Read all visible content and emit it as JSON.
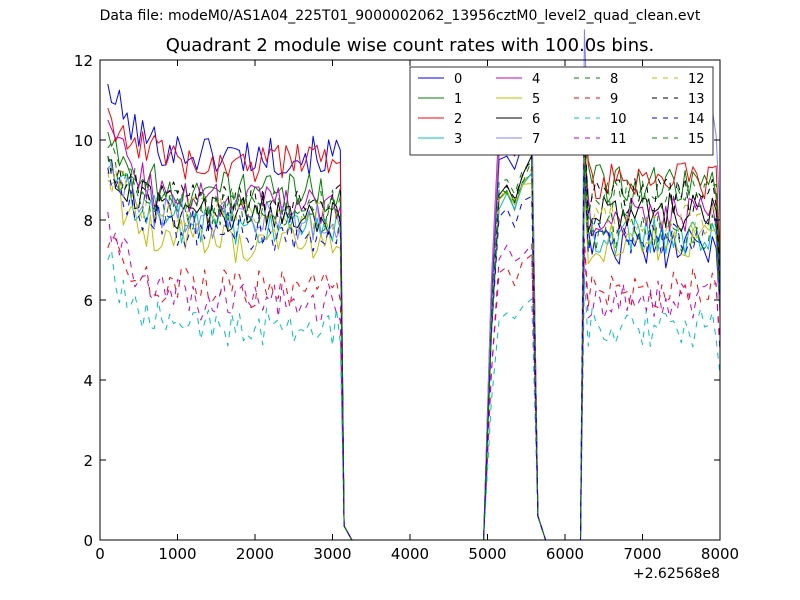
{
  "figure": {
    "suptitle": "Data file: modeM0/AS1A04_225T01_9000002062_13956cztM0_level2_quad_clean.evt"
  },
  "chart_data": {
    "type": "line",
    "title": "Quadrant 2 module wise count rates with 100.0s bins.",
    "xlabel": "",
    "ylabel": "",
    "xlim": [
      0,
      8000
    ],
    "ylim": [
      0,
      12
    ],
    "xticks": [
      0,
      1000,
      2000,
      3000,
      4000,
      5000,
      6000,
      7000,
      8000
    ],
    "xtick_labels": [
      "0",
      "1000",
      "2000",
      "3000",
      "4000",
      "5000",
      "6000",
      "7000",
      "8000"
    ],
    "yticks": [
      0,
      2,
      4,
      6,
      8,
      10,
      12
    ],
    "ytick_labels": [
      "0",
      "2",
      "4",
      "6",
      "8",
      "10",
      "12"
    ],
    "offset_text": "+2.62568e8",
    "legend_position": "top-right",
    "grid": false,
    "segments": [
      {
        "start": 100,
        "end": 3100,
        "step": 50
      },
      {
        "start": 4950,
        "end": 5650,
        "step": 100
      },
      {
        "start": 6200,
        "end": 8000,
        "step": 50
      }
    ],
    "series": [
      {
        "name": "0",
        "color": "#0000ff",
        "dash": "solid",
        "level": 9.6,
        "start_level": 11.4,
        "s2": 9.6,
        "s3": 7.3
      },
      {
        "name": "1",
        "color": "#008000",
        "dash": "solid",
        "level": 8.7,
        "start_level": 10.2,
        "s2": 8.5,
        "s3": 8.9
      },
      {
        "name": "2",
        "color": "#ff0000",
        "dash": "solid",
        "level": 9.4,
        "start_level": 10.8,
        "s2": 10.3,
        "s3": 9.0
      },
      {
        "name": "3",
        "color": "#00bfbf",
        "dash": "solid",
        "level": 7.8,
        "start_level": 9.6,
        "s2": 8.4,
        "s3": 7.6
      },
      {
        "name": "4",
        "color": "#bf00bf",
        "dash": "solid",
        "level": 8.4,
        "start_level": 10.5,
        "s2": 9.7,
        "s3": 8.1
      },
      {
        "name": "5",
        "color": "#bfbf00",
        "dash": "solid",
        "level": 7.4,
        "start_level": 9.0,
        "s2": 8.4,
        "s3": 7.4
      },
      {
        "name": "6",
        "color": "#000000",
        "dash": "solid",
        "level": 8.1,
        "start_level": 9.5,
        "s2": 8.8,
        "s3": 8.2
      },
      {
        "name": "7",
        "color": "#8080ff",
        "dash": "solid",
        "level": 8.0,
        "start_level": 9.3,
        "s2": 10.2,
        "s3": 10.4
      },
      {
        "name": "8",
        "color": "#008000",
        "dash": "dashed",
        "level": 8.3,
        "start_level": 9.8,
        "s2": 8.9,
        "s3": 8.5
      },
      {
        "name": "9",
        "color": "#ff0000",
        "dash": "dashed",
        "level": 6.3,
        "start_level": 7.3,
        "s2": 6.5,
        "s3": 6.3
      },
      {
        "name": "10",
        "color": "#00bfbf",
        "dash": "dashed",
        "level": 5.3,
        "start_level": 7.0,
        "s2": 5.6,
        "s3": 5.3
      },
      {
        "name": "11",
        "color": "#bf00bf",
        "dash": "dashed",
        "level": 5.9,
        "start_level": 8.2,
        "s2": 7.0,
        "s3": 6.0
      },
      {
        "name": "12",
        "color": "#bfbf00",
        "dash": "dashed",
        "level": 8.1,
        "start_level": 9.2,
        "s2": 8.5,
        "s3": 8.0
      },
      {
        "name": "13",
        "color": "#000000",
        "dash": "dashed",
        "level": 8.4,
        "start_level": 9.6,
        "s2": 8.9,
        "s3": 8.6
      },
      {
        "name": "14",
        "color": "#0000ff",
        "dash": "dashed",
        "level": 7.7,
        "start_level": 9.3,
        "s2": 8.1,
        "s3": 7.6
      },
      {
        "name": "15",
        "color": "#008000",
        "dash": "dashed",
        "level": 8.2,
        "start_level": 9.6,
        "s2": 8.7,
        "s3": 7.7
      }
    ]
  }
}
